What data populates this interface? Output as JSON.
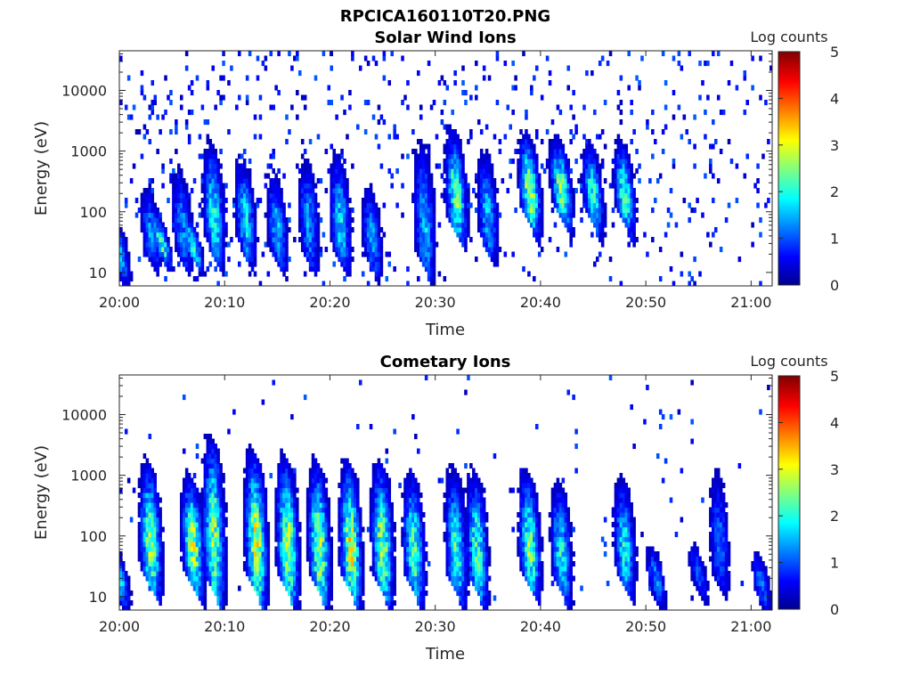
{
  "figure_title": "RPCICA160110T20.PNG",
  "colorbar": {
    "label": "Log counts",
    "ticks": [
      "0",
      "1",
      "2",
      "3",
      "4",
      "5"
    ],
    "range": [
      0,
      5
    ],
    "colormap": "jet",
    "stops": [
      "#00008f",
      "#0000ff",
      "#00ffff",
      "#ffff00",
      "#ff0000",
      "#800000"
    ]
  },
  "chart_data": [
    {
      "type": "heatmap",
      "title": "Solar Wind Ions",
      "xlabel": "Time",
      "ylabel": "Energy (eV)",
      "x_ticks": [
        "20:00",
        "20:10",
        "20:20",
        "20:30",
        "20:40",
        "20:50",
        "21:00"
      ],
      "y_ticks": [
        "10",
        "100",
        "1000",
        "10000"
      ],
      "y_scale": "log",
      "xlim": [
        "20:00",
        "21:02"
      ],
      "ylim": [
        6,
        45000
      ],
      "zlim": [
        0,
        5
      ],
      "bursts": [
        {
          "t": "20:00",
          "e_low": 12,
          "e_high": 60,
          "peak": 1.8
        },
        {
          "t": "20:03",
          "e_low": 20,
          "e_high": 200,
          "peak": 1.5
        },
        {
          "t": "20:04",
          "e_low": 25,
          "e_high": 50,
          "peak": 2.6
        },
        {
          "t": "20:06",
          "e_low": 20,
          "e_high": 400,
          "peak": 1.5
        },
        {
          "t": "20:07",
          "e_low": 22,
          "e_high": 45,
          "peak": 2.5
        },
        {
          "t": "20:09",
          "e_low": 25,
          "e_high": 900,
          "peak": 2.2
        },
        {
          "t": "20:12",
          "e_low": 25,
          "e_high": 500,
          "peak": 2.0
        },
        {
          "t": "20:15",
          "e_low": 20,
          "e_high": 300,
          "peak": 1.8
        },
        {
          "t": "20:18",
          "e_low": 20,
          "e_high": 600,
          "peak": 1.6
        },
        {
          "t": "20:21",
          "e_low": 20,
          "e_high": 600,
          "peak": 2.0
        },
        {
          "t": "20:24",
          "e_low": 15,
          "e_high": 200,
          "peak": 1.6
        },
        {
          "t": "20:29",
          "e_low": 15,
          "e_high": 1000,
          "peak": 1.8
        },
        {
          "t": "20:32",
          "e_low": 60,
          "e_high": 1500,
          "peak": 2.7
        },
        {
          "t": "20:35",
          "e_low": 30,
          "e_high": 700,
          "peak": 1.8
        },
        {
          "t": "20:39",
          "e_low": 80,
          "e_high": 1200,
          "peak": 3.2
        },
        {
          "t": "20:42",
          "e_low": 100,
          "e_high": 1000,
          "peak": 3.0
        },
        {
          "t": "20:45",
          "e_low": 80,
          "e_high": 900,
          "peak": 2.4
        },
        {
          "t": "20:48",
          "e_low": 80,
          "e_high": 1000,
          "peak": 2.5
        }
      ]
    },
    {
      "type": "heatmap",
      "title": "Cometary Ions",
      "xlabel": "Time",
      "ylabel": "Energy (eV)",
      "x_ticks": [
        "20:00",
        "20:10",
        "20:20",
        "20:30",
        "20:40",
        "20:50",
        "21:00"
      ],
      "y_ticks": [
        "10",
        "100",
        "1000",
        "10000"
      ],
      "y_scale": "log",
      "xlim": [
        "20:00",
        "21:02"
      ],
      "ylim": [
        6,
        45000
      ],
      "zlim": [
        0,
        5
      ],
      "bursts": [
        {
          "t": "20:00",
          "e_low": 12,
          "e_high": 45,
          "peak": 2.2
        },
        {
          "t": "20:03",
          "e_low": 20,
          "e_high": 1000,
          "peak": 3.0
        },
        {
          "t": "20:07",
          "e_low": 20,
          "e_high": 600,
          "peak": 3.2
        },
        {
          "t": "20:09",
          "e_low": 15,
          "e_high": 2500,
          "peak": 3.0
        },
        {
          "t": "20:13",
          "e_low": 15,
          "e_high": 1500,
          "peak": 3.3
        },
        {
          "t": "20:16",
          "e_low": 15,
          "e_high": 1200,
          "peak": 3.2
        },
        {
          "t": "20:19",
          "e_low": 15,
          "e_high": 1000,
          "peak": 3.2
        },
        {
          "t": "20:22",
          "e_low": 15,
          "e_high": 1000,
          "peak": 3.3
        },
        {
          "t": "20:25",
          "e_low": 15,
          "e_high": 1000,
          "peak": 3.0
        },
        {
          "t": "20:28",
          "e_low": 15,
          "e_high": 700,
          "peak": 2.6
        },
        {
          "t": "20:32",
          "e_low": 15,
          "e_high": 800,
          "peak": 2.4
        },
        {
          "t": "20:34",
          "e_low": 15,
          "e_high": 700,
          "peak": 2.6
        },
        {
          "t": "20:39",
          "e_low": 20,
          "e_high": 700,
          "peak": 2.8
        },
        {
          "t": "20:42",
          "e_low": 15,
          "e_high": 500,
          "peak": 2.2
        },
        {
          "t": "20:48",
          "e_low": 20,
          "e_high": 600,
          "peak": 2.2
        },
        {
          "t": "20:51",
          "e_low": 12,
          "e_high": 50,
          "peak": 1.5
        },
        {
          "t": "20:55",
          "e_low": 15,
          "e_high": 60,
          "peak": 1.2
        },
        {
          "t": "20:57",
          "e_low": 20,
          "e_high": 1000,
          "peak": 1.3
        },
        {
          "t": "21:01",
          "e_low": 10,
          "e_high": 40,
          "peak": 1.4
        }
      ]
    }
  ]
}
